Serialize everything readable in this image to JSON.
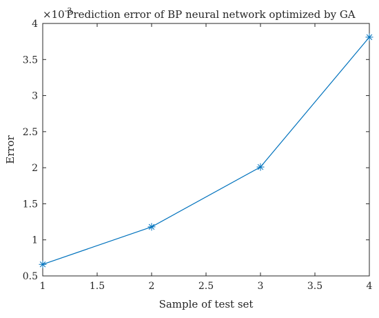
{
  "chart_data": {
    "type": "line",
    "title": "Prediction error of BP neural network optimized by GA",
    "xlabel": "Sample of test set",
    "ylabel": "Error",
    "y_scale_factor_base": "×10",
    "y_scale_factor_exponent": "-3",
    "xlim": [
      1,
      4
    ],
    "ylim": [
      0.5,
      4
    ],
    "x_ticks": [
      1,
      1.5,
      2,
      2.5,
      3,
      3.5,
      4
    ],
    "x_tick_labels": [
      "1",
      "1.5",
      "2",
      "2.5",
      "3",
      "3.5",
      "4"
    ],
    "y_ticks": [
      0.5,
      1,
      1.5,
      2,
      2.5,
      3,
      3.5,
      4
    ],
    "y_tick_labels": [
      "0.5",
      "1",
      "1.5",
      "2",
      "2.5",
      "3",
      "3.5",
      "4"
    ],
    "grid": false,
    "marker": "asterisk",
    "series": [
      {
        "x": [
          1,
          2,
          3,
          4
        ],
        "values": [
          0.66,
          1.18,
          2.01,
          3.81
        ],
        "color": "#0072BD"
      }
    ]
  }
}
